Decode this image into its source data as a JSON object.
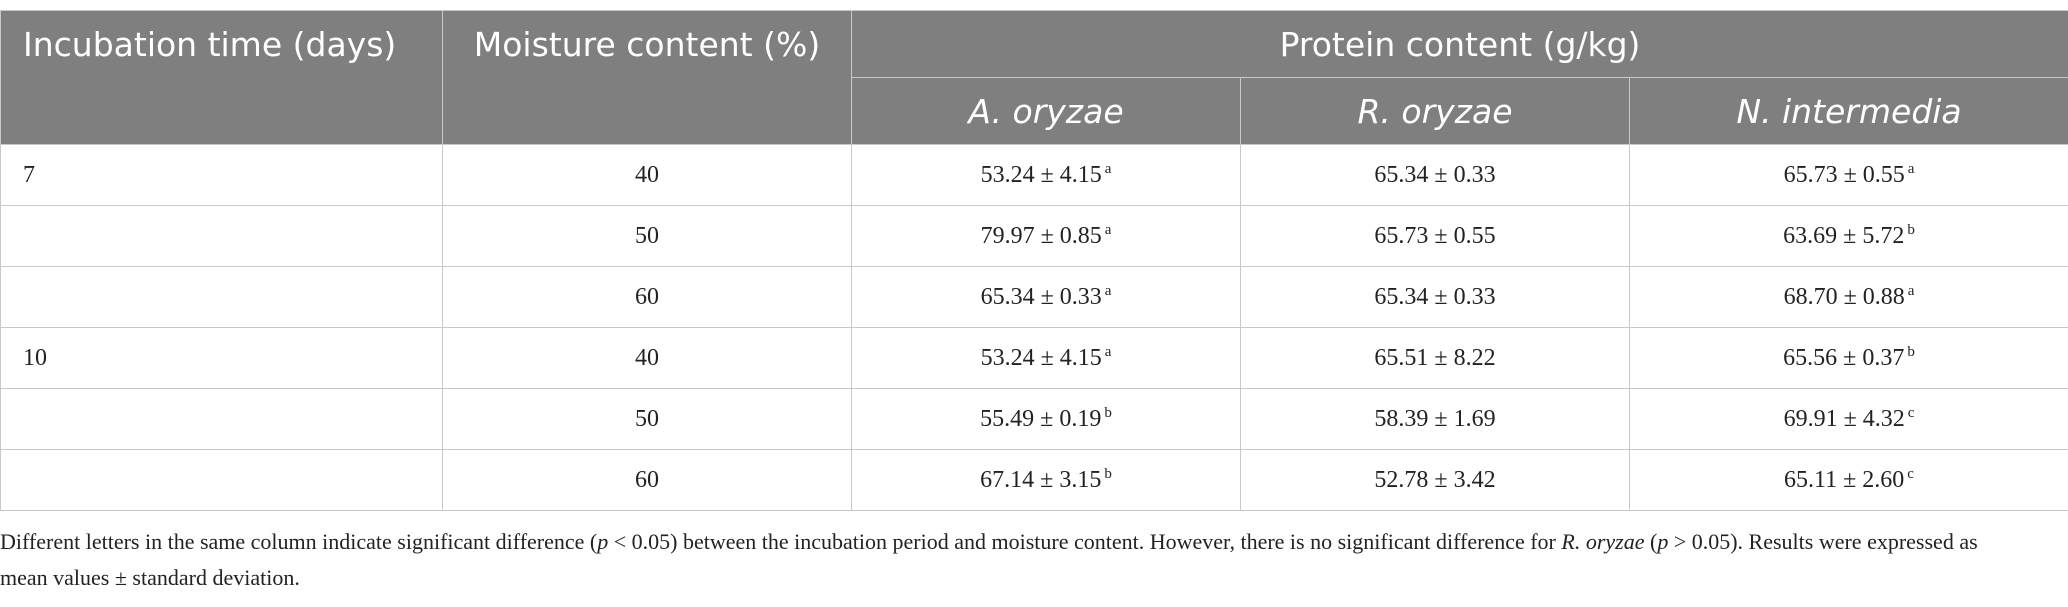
{
  "table": {
    "headers": {
      "time": "Incubation time (days)",
      "moisture": "Moisture content (%)",
      "protein": "Protein content (g/kg)",
      "species": [
        "A. oryzae",
        "R. oryzae",
        "N. intermedia"
      ]
    },
    "rows": [
      {
        "time": "7",
        "moisture": "40",
        "cells": [
          {
            "value": "53.24 ± 4.15",
            "sup": "a"
          },
          {
            "value": "65.34 ± 0.33"
          },
          {
            "value": "65.73 ± 0.55",
            "sup": "a"
          }
        ]
      },
      {
        "moisture": "50",
        "cells": [
          {
            "value": "79.97 ± 0.85",
            "sup": "a"
          },
          {
            "value": "65.73 ± 0.55"
          },
          {
            "value": "63.69 ± 5.72",
            "sup": "b"
          }
        ]
      },
      {
        "moisture": "60",
        "cells": [
          {
            "value": "65.34 ± 0.33",
            "sup": "a"
          },
          {
            "value": "65.34 ± 0.33"
          },
          {
            "value": "68.70 ± 0.88",
            "sup": "a"
          }
        ]
      },
      {
        "time": "10",
        "moisture": "40",
        "cells": [
          {
            "value": "53.24 ± 4.15",
            "sup": "a"
          },
          {
            "value": "65.51 ± 8.22"
          },
          {
            "value": "65.56 ± 0.37",
            "sup": "b"
          }
        ]
      },
      {
        "moisture": "50",
        "cells": [
          {
            "value": "55.49 ± 0.19",
            "sup": "b"
          },
          {
            "value": "58.39 ± 1.69"
          },
          {
            "value": "69.91 ± 4.32",
            "sup": "c"
          }
        ]
      },
      {
        "moisture": "60",
        "cells": [
          {
            "value": "67.14 ± 3.15",
            "sup": "b"
          },
          {
            "value": "52.78 ± 3.42"
          },
          {
            "value": "65.11 ± 2.60",
            "sup": "c"
          }
        ]
      }
    ]
  },
  "footnote": [
    {
      "text": "Different letters in the same column indicate significant difference ("
    },
    {
      "text": "p",
      "italic": true
    },
    {
      "text": " < 0.05) between the incubation period and moisture content. However, there is no significant difference for "
    },
    {
      "text": "R. oryzae",
      "italic": true
    },
    {
      "text": " ("
    },
    {
      "text": "p",
      "italic": true
    },
    {
      "text": " > 0.05). Results were expressed as mean values ± standard deviation."
    }
  ]
}
